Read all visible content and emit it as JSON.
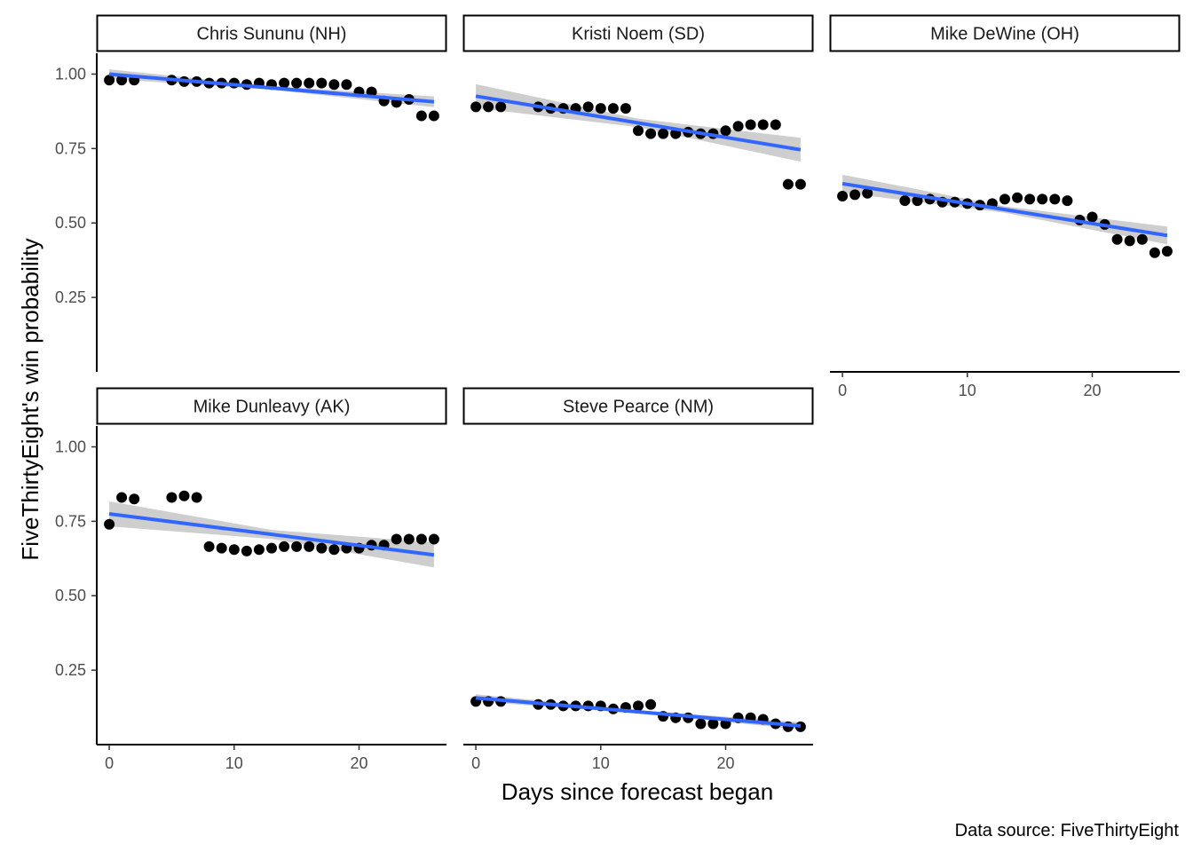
{
  "chart_data": {
    "type": "scatter",
    "layout": "facet-grid",
    "xlabel": "Days since forecast began",
    "ylabel": "FiveThirtyEight's win probability",
    "caption": "Data source: FiveThirtyEight",
    "xlim": [
      -1,
      27
    ],
    "ylim": [
      0,
      1.07
    ],
    "xticks": [
      0,
      10,
      20
    ],
    "xtick_labels": [
      "0",
      "10",
      "20"
    ],
    "yticks": [
      0.25,
      0.5,
      0.75,
      1.0
    ],
    "ytick_labels": [
      "0.25",
      "0.50",
      "0.75",
      "1.00"
    ],
    "grid": false,
    "colors": {
      "points": "#000000",
      "fit_line": "#3366FF",
      "confidence_band": "#BEBEBE",
      "strip_border": "#000000"
    },
    "panels": [
      {
        "name": "Chris Sununu (NH)",
        "x": [
          0,
          1,
          2,
          5,
          6,
          7,
          8,
          9,
          10,
          11,
          12,
          13,
          14,
          15,
          16,
          17,
          18,
          19,
          20,
          21,
          22,
          23,
          24,
          25,
          26
        ],
        "y": [
          0.98,
          0.98,
          0.98,
          0.98,
          0.975,
          0.975,
          0.97,
          0.97,
          0.97,
          0.965,
          0.97,
          0.965,
          0.97,
          0.97,
          0.97,
          0.97,
          0.965,
          0.965,
          0.94,
          0.94,
          0.91,
          0.905,
          0.915,
          0.86,
          0.86
        ],
        "fit": {
          "x": [
            0,
            26
          ],
          "y": [
            1.0,
            0.907
          ],
          "band_halfwidth": [
            0.016,
            0.006,
            0.018
          ]
        }
      },
      {
        "name": "Kristi Noem (SD)",
        "x": [
          0,
          1,
          2,
          5,
          6,
          7,
          8,
          9,
          10,
          11,
          12,
          13,
          14,
          15,
          16,
          17,
          18,
          19,
          20,
          21,
          22,
          23,
          24,
          25,
          26
        ],
        "y": [
          0.89,
          0.89,
          0.89,
          0.89,
          0.885,
          0.885,
          0.885,
          0.89,
          0.885,
          0.885,
          0.885,
          0.81,
          0.8,
          0.8,
          0.8,
          0.805,
          0.8,
          0.8,
          0.81,
          0.825,
          0.83,
          0.83,
          0.83,
          0.63,
          0.63
        ],
        "fit": {
          "x": [
            0,
            26
          ],
          "y": [
            0.926,
            0.746
          ],
          "band_halfwidth": [
            0.04,
            0.014,
            0.04
          ]
        }
      },
      {
        "name": "Mike DeWine (OH)",
        "x": [
          0,
          1,
          2,
          5,
          6,
          7,
          8,
          9,
          10,
          11,
          12,
          13,
          14,
          15,
          16,
          17,
          18,
          19,
          20,
          21,
          22,
          23,
          24,
          25,
          26
        ],
        "y": [
          0.59,
          0.595,
          0.6,
          0.575,
          0.575,
          0.58,
          0.57,
          0.57,
          0.565,
          0.56,
          0.565,
          0.58,
          0.585,
          0.58,
          0.58,
          0.58,
          0.575,
          0.51,
          0.52,
          0.495,
          0.445,
          0.44,
          0.445,
          0.4,
          0.405
        ],
        "fit": {
          "x": [
            0,
            26
          ],
          "y": [
            0.632,
            0.458
          ],
          "band_halfwidth": [
            0.03,
            0.011,
            0.03
          ]
        }
      },
      {
        "name": "Mike Dunleavy (AK)",
        "x": [
          0,
          1,
          2,
          5,
          6,
          7,
          8,
          9,
          10,
          11,
          12,
          13,
          14,
          15,
          16,
          17,
          18,
          19,
          20,
          21,
          22,
          23,
          24,
          25,
          26
        ],
        "y": [
          0.74,
          0.83,
          0.825,
          0.83,
          0.835,
          0.83,
          0.665,
          0.66,
          0.655,
          0.65,
          0.655,
          0.66,
          0.665,
          0.665,
          0.665,
          0.66,
          0.655,
          0.66,
          0.66,
          0.67,
          0.67,
          0.69,
          0.69,
          0.69,
          0.69
        ],
        "fit": {
          "x": [
            0,
            26
          ],
          "y": [
            0.775,
            0.637
          ],
          "band_halfwidth": [
            0.042,
            0.015,
            0.042
          ]
        }
      },
      {
        "name": "Steve Pearce (NM)",
        "x": [
          0,
          1,
          2,
          5,
          6,
          7,
          8,
          9,
          10,
          11,
          12,
          13,
          14,
          15,
          16,
          17,
          18,
          19,
          20,
          21,
          22,
          23,
          24,
          25,
          26
        ],
        "y": [
          0.145,
          0.145,
          0.145,
          0.135,
          0.135,
          0.13,
          0.13,
          0.13,
          0.13,
          0.12,
          0.125,
          0.13,
          0.135,
          0.095,
          0.09,
          0.09,
          0.07,
          0.07,
          0.07,
          0.09,
          0.09,
          0.085,
          0.07,
          0.06,
          0.06
        ],
        "fit": {
          "x": [
            0,
            26
          ],
          "y": [
            0.157,
            0.063
          ],
          "band_halfwidth": [
            0.012,
            0.005,
            0.012
          ]
        }
      }
    ]
  }
}
